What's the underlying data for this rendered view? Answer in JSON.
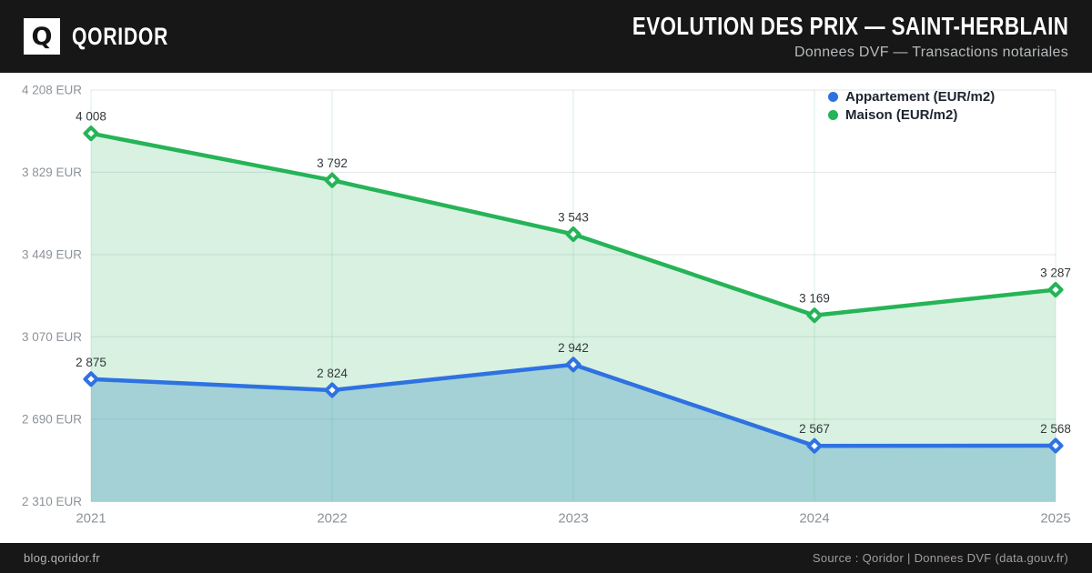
{
  "header": {
    "logo_letter": "Q",
    "brand": "QORIDOR",
    "title": "EVOLUTION DES PRIX — SAINT-HERBLAIN",
    "subtitle": "Donnees DVF — Transactions notariales"
  },
  "footer": {
    "left": "blog.qoridor.fr",
    "right": "Source : Qoridor | Donnees DVF (data.gouv.fr)"
  },
  "chart_data": {
    "type": "line",
    "x": [
      2021,
      2022,
      2023,
      2024,
      2025
    ],
    "series": [
      {
        "name": "Appartement (EUR/m2)",
        "color": "#2e72e2",
        "fill": "rgba(40,135,190,0.30)",
        "values": [
          2875,
          2824,
          2942,
          2567,
          2568
        ]
      },
      {
        "name": "Maison (EUR/m2)",
        "color": "#25b457",
        "fill": "rgba(37,180,88,0.18)",
        "values": [
          4008,
          3792,
          3543,
          3169,
          3287
        ]
      }
    ],
    "y_ticks": [
      4208,
      3829,
      3449,
      3070,
      2690,
      2310
    ],
    "y_tick_suffix": " EUR",
    "ylim": [
      2310,
      4208
    ],
    "grid": true,
    "legend_position": "top-right",
    "colors": {
      "h_grid": "#e3e6e9",
      "v_grid": "rgba(37,180,88,0.18)",
      "axis_text": "#8d9399",
      "point_label": "#34383c"
    }
  }
}
